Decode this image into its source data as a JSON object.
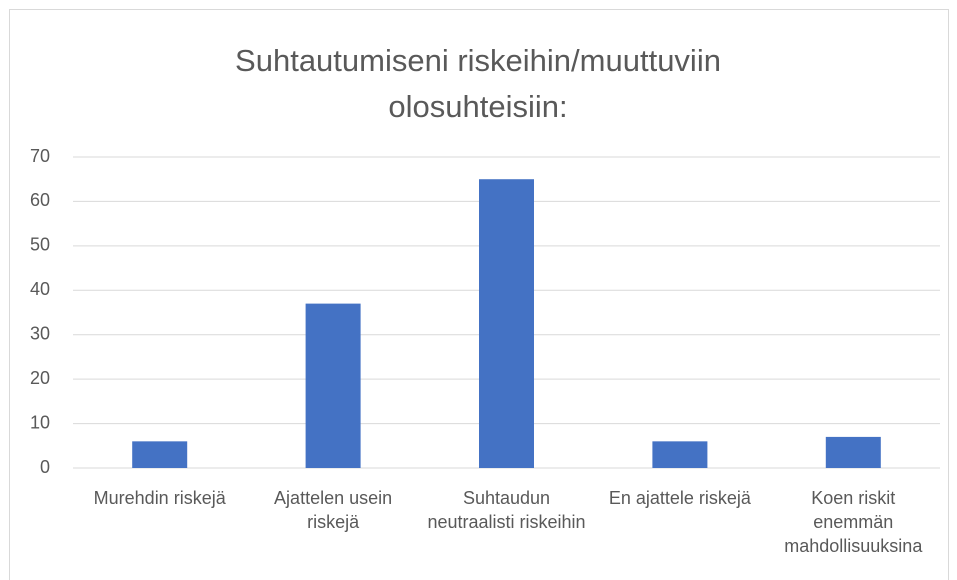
{
  "chart_data": {
    "type": "bar",
    "title": "Suhtautumiseni riskeihin/muuttuviin olosuhteisiin:",
    "categories": [
      "Murehdin riskejä",
      "Ajattelen usein riskejä",
      "Suhtaudun neutraalisti riskeihin",
      "En ajattele riskejä",
      "Koen riskit enemmän mahdollisuuksina"
    ],
    "values": [
      6,
      37,
      65,
      6,
      7
    ],
    "color": "#4472c4",
    "ylim": [
      0,
      70
    ],
    "yticks": [
      0,
      10,
      20,
      30,
      40,
      50,
      60,
      70
    ],
    "grid": true
  }
}
